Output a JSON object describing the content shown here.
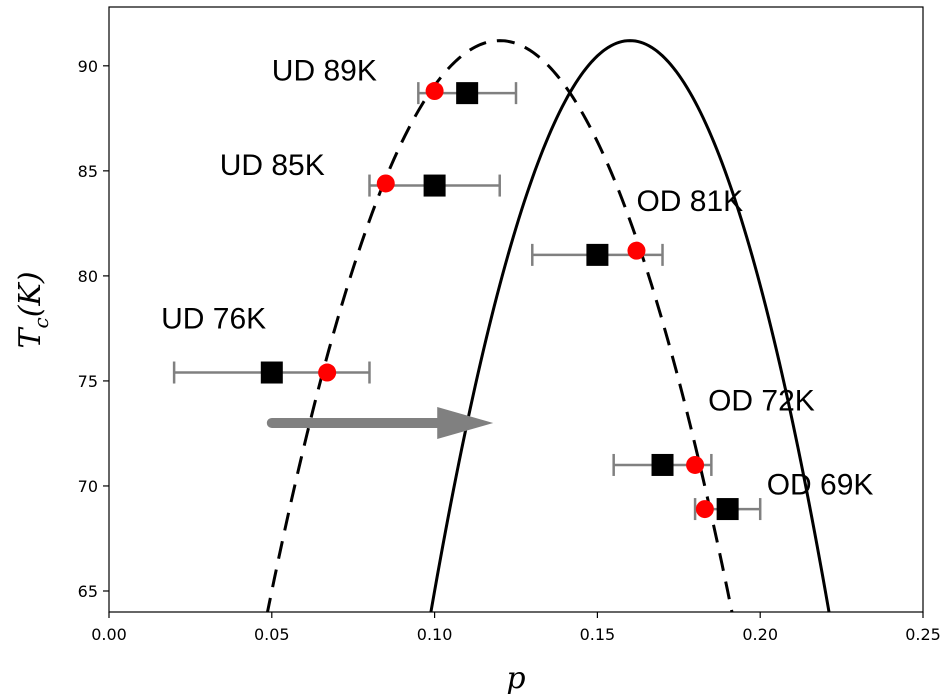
{
  "chart_data": {
    "type": "scatter",
    "xlabel": "p",
    "ylabel": {
      "main": "T",
      "sub": "c",
      "rest": "(K)"
    },
    "xlim": [
      0.0,
      0.25
    ],
    "ylim": [
      64,
      92.8
    ],
    "xticks": [
      0.0,
      0.05,
      0.1,
      0.15,
      0.2,
      0.25
    ],
    "xtick_labels": [
      "0.00",
      "0.05",
      "0.10",
      "0.15",
      "0.20",
      "0.25"
    ],
    "yticks": [
      65,
      70,
      75,
      80,
      85,
      90
    ],
    "ytick_labels": [
      "65",
      "70",
      "75",
      "80",
      "85",
      "90"
    ],
    "grid": false,
    "curves": [
      {
        "style": "dashed",
        "color": "#000000",
        "peak_x": 0.12,
        "peak_y": 91.2,
        "x_at_65": 0.05
      },
      {
        "style": "solid",
        "color": "#000000",
        "peak_x": 0.16,
        "peak_y": 91.2,
        "x_at_65": 0.1
      }
    ],
    "square_series": {
      "marker": "square",
      "color": "#000000",
      "errbar_color": "#808080",
      "points": [
        {
          "x": 0.11,
          "y": 88.7,
          "xerr_lo": 0.015,
          "xerr_hi": 0.015
        },
        {
          "x": 0.1,
          "y": 84.3,
          "xerr_lo": 0.02,
          "xerr_hi": 0.02
        },
        {
          "x": 0.15,
          "y": 81.0,
          "xerr_lo": 0.02,
          "xerr_hi": 0.02
        },
        {
          "x": 0.05,
          "y": 75.4,
          "xerr_lo": 0.03,
          "xerr_hi": 0.03
        },
        {
          "x": 0.17,
          "y": 71.0,
          "xerr_lo": 0.015,
          "xerr_hi": 0.015
        },
        {
          "x": 0.19,
          "y": 68.9,
          "xerr_lo": 0.01,
          "xerr_hi": 0.01
        }
      ]
    },
    "circle_series": {
      "marker": "circle",
      "color": "#ff0000",
      "points": [
        {
          "x": 0.1,
          "y": 88.8
        },
        {
          "x": 0.085,
          "y": 84.4
        },
        {
          "x": 0.162,
          "y": 81.2
        },
        {
          "x": 0.067,
          "y": 75.4
        },
        {
          "x": 0.18,
          "y": 71.0
        },
        {
          "x": 0.183,
          "y": 68.9
        }
      ]
    },
    "arrow": {
      "from": [
        0.05,
        73.0
      ],
      "to": [
        0.118,
        73.0
      ],
      "color": "#808080"
    },
    "annotations": [
      {
        "text": "UD 89K",
        "x": 0.05,
        "y": 89.3
      },
      {
        "text": "UD 85K",
        "x": 0.034,
        "y": 84.8
      },
      {
        "text": "UD 76K",
        "x": 0.016,
        "y": 77.5
      },
      {
        "text": "OD 81K",
        "x": 0.162,
        "y": 83.1
      },
      {
        "text": "OD 72K",
        "x": 0.184,
        "y": 73.6
      },
      {
        "text": "OD 69K",
        "x": 0.202,
        "y": 69.6
      }
    ]
  }
}
